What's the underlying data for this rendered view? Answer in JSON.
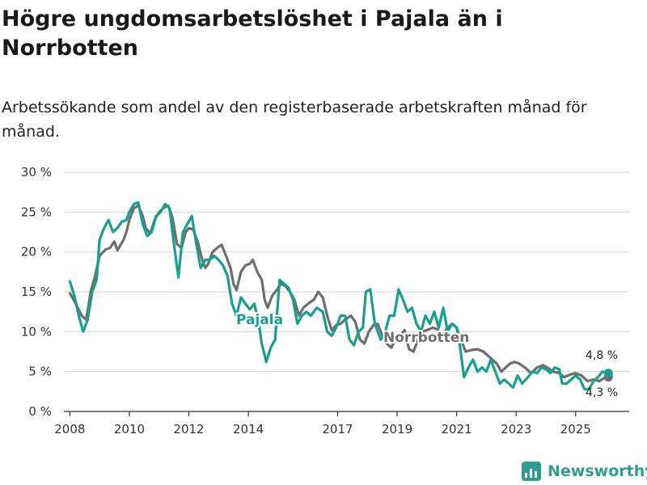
{
  "header": {
    "title": "Högre ungdomsarbetslöshet i Pajala än i Norrbotten",
    "subtitle": "Arbetssökande som andel av den registerbaserade arbetskraften månad för månad."
  },
  "brand": {
    "name": "Newsworthy",
    "color": "#2f9e8f"
  },
  "chart_data": {
    "type": "line",
    "title": "Högre ungdomsarbetslöshet i Pajala än i Norrbotten",
    "subtitle": "Arbetssökande som andel av den registerbaserade arbetskraften månad för månad.",
    "xlabel": "",
    "ylabel": "",
    "xlim": [
      2007.8,
      2026.8
    ],
    "ylim": [
      0,
      30
    ],
    "grid": true,
    "x_ticks": [
      {
        "value": 2008,
        "label": "2008"
      },
      {
        "value": 2010,
        "label": "2010"
      },
      {
        "value": 2012,
        "label": "2012"
      },
      {
        "value": 2014,
        "label": "2014"
      },
      {
        "value": 2017,
        "label": "2017"
      },
      {
        "value": 2019,
        "label": "2019"
      },
      {
        "value": 2021,
        "label": "2021"
      },
      {
        "value": 2023,
        "label": "2023"
      },
      {
        "value": 2025,
        "label": "2025"
      }
    ],
    "y_ticks": [
      {
        "value": 0,
        "label": "0 %"
      },
      {
        "value": 5,
        "label": "5 %"
      },
      {
        "value": 10,
        "label": "10 %"
      },
      {
        "value": 15,
        "label": "15 %"
      },
      {
        "value": 20,
        "label": "20 %"
      },
      {
        "value": 25,
        "label": "25 %"
      },
      {
        "value": 30,
        "label": "30 %"
      }
    ],
    "series": [
      {
        "name": "Norrbotten",
        "color": "#6e6e6e",
        "points": [
          [
            2008.0,
            14.8
          ],
          [
            2008.2,
            13.5
          ],
          [
            2008.4,
            12.0
          ],
          [
            2008.55,
            11.5
          ],
          [
            2008.7,
            15.0
          ],
          [
            2008.85,
            17.0
          ],
          [
            2009.0,
            19.5
          ],
          [
            2009.2,
            20.3
          ],
          [
            2009.35,
            20.5
          ],
          [
            2009.5,
            21.3
          ],
          [
            2009.6,
            20.2
          ],
          [
            2009.8,
            21.5
          ],
          [
            2009.9,
            22.5
          ],
          [
            2010.0,
            24.0
          ],
          [
            2010.15,
            25.5
          ],
          [
            2010.3,
            25.8
          ],
          [
            2010.45,
            24.5
          ],
          [
            2010.55,
            23.0
          ],
          [
            2010.7,
            22.3
          ],
          [
            2010.85,
            24.0
          ],
          [
            2011.0,
            25.0
          ],
          [
            2011.15,
            25.5
          ],
          [
            2011.3,
            25.8
          ],
          [
            2011.45,
            24.3
          ],
          [
            2011.6,
            21.0
          ],
          [
            2011.75,
            20.5
          ],
          [
            2011.9,
            22.5
          ],
          [
            2012.0,
            23.0
          ],
          [
            2012.15,
            22.8
          ],
          [
            2012.3,
            21.2
          ],
          [
            2012.45,
            19.0
          ],
          [
            2012.55,
            18.0
          ],
          [
            2012.65,
            18.5
          ],
          [
            2012.8,
            20.0
          ],
          [
            2012.95,
            20.5
          ],
          [
            2013.1,
            20.9
          ],
          [
            2013.25,
            19.5
          ],
          [
            2013.4,
            18.0
          ],
          [
            2013.5,
            16.0
          ],
          [
            2013.6,
            15.2
          ],
          [
            2013.75,
            17.5
          ],
          [
            2013.9,
            18.3
          ],
          [
            2014.05,
            18.5
          ],
          [
            2014.15,
            19.0
          ],
          [
            2014.3,
            17.5
          ],
          [
            2014.45,
            16.5
          ],
          [
            2014.55,
            14.0
          ],
          [
            2014.65,
            13.0
          ],
          [
            2014.8,
            14.5
          ],
          [
            2014.95,
            15.2
          ],
          [
            2015.1,
            16.0
          ],
          [
            2015.25,
            15.7
          ],
          [
            2015.4,
            15.0
          ],
          [
            2015.55,
            14.0
          ],
          [
            2015.7,
            12.0
          ],
          [
            2015.85,
            13.0
          ],
          [
            2016.0,
            13.5
          ],
          [
            2016.2,
            14.0
          ],
          [
            2016.35,
            15.0
          ],
          [
            2016.5,
            14.3
          ],
          [
            2016.65,
            12.0
          ],
          [
            2016.8,
            10.2
          ],
          [
            2016.95,
            10.8
          ],
          [
            2017.1,
            11.0
          ],
          [
            2017.25,
            11.5
          ],
          [
            2017.45,
            12.0
          ],
          [
            2017.6,
            11.2
          ],
          [
            2017.75,
            9.0
          ],
          [
            2017.9,
            8.5
          ],
          [
            2018.05,
            10.0
          ],
          [
            2018.2,
            10.8
          ],
          [
            2018.35,
            11.0
          ],
          [
            2018.5,
            9.5
          ],
          [
            2018.65,
            8.5
          ],
          [
            2018.8,
            8.0
          ],
          [
            2018.95,
            9.0
          ],
          [
            2019.1,
            9.5
          ],
          [
            2019.25,
            10.2
          ],
          [
            2019.4,
            7.8
          ],
          [
            2019.55,
            7.5
          ],
          [
            2019.7,
            9.0
          ],
          [
            2019.85,
            10.0
          ],
          [
            2020.0,
            10.2
          ],
          [
            2020.2,
            10.5
          ],
          [
            2020.35,
            10.3
          ],
          [
            2020.5,
            9.5
          ],
          [
            2020.7,
            10.5
          ],
          [
            2020.85,
            11.0
          ],
          [
            2021.0,
            10.5
          ],
          [
            2021.15,
            9.0
          ],
          [
            2021.3,
            7.5
          ],
          [
            2021.5,
            7.7
          ],
          [
            2021.7,
            7.8
          ],
          [
            2021.9,
            7.5
          ],
          [
            2022.05,
            7.0
          ],
          [
            2022.2,
            6.5
          ],
          [
            2022.35,
            6.0
          ],
          [
            2022.5,
            5.0
          ],
          [
            2022.65,
            5.5
          ],
          [
            2022.8,
            6.0
          ],
          [
            2022.95,
            6.2
          ],
          [
            2023.1,
            6.0
          ],
          [
            2023.3,
            5.5
          ],
          [
            2023.5,
            4.8
          ],
          [
            2023.7,
            5.5
          ],
          [
            2023.9,
            5.8
          ],
          [
            2024.05,
            5.5
          ],
          [
            2024.25,
            5.0
          ],
          [
            2024.45,
            4.8
          ],
          [
            2024.6,
            4.3
          ],
          [
            2024.8,
            4.6
          ],
          [
            2025.0,
            4.8
          ],
          [
            2025.2,
            4.5
          ],
          [
            2025.4,
            3.8
          ],
          [
            2025.6,
            4.0
          ],
          [
            2025.8,
            3.8
          ],
          [
            2026.0,
            4.3
          ],
          [
            2026.1,
            4.3
          ]
        ]
      },
      {
        "name": "Pajala",
        "color": "#1a9e90",
        "points": [
          [
            2008.0,
            16.3
          ],
          [
            2008.15,
            14.5
          ],
          [
            2008.3,
            12.0
          ],
          [
            2008.45,
            10.0
          ],
          [
            2008.6,
            11.5
          ],
          [
            2008.75,
            15.0
          ],
          [
            2008.9,
            16.5
          ],
          [
            2009.0,
            21.5
          ],
          [
            2009.15,
            23.0
          ],
          [
            2009.3,
            24.0
          ],
          [
            2009.45,
            22.5
          ],
          [
            2009.6,
            23.0
          ],
          [
            2009.75,
            23.8
          ],
          [
            2009.9,
            24.0
          ],
          [
            2010.0,
            25.0
          ],
          [
            2010.15,
            26.0
          ],
          [
            2010.3,
            26.2
          ],
          [
            2010.45,
            23.5
          ],
          [
            2010.6,
            22.0
          ],
          [
            2010.75,
            22.5
          ],
          [
            2010.9,
            24.5
          ],
          [
            2011.05,
            25.0
          ],
          [
            2011.2,
            26.0
          ],
          [
            2011.35,
            25.5
          ],
          [
            2011.5,
            21.0
          ],
          [
            2011.65,
            16.8
          ],
          [
            2011.8,
            22.5
          ],
          [
            2011.95,
            23.5
          ],
          [
            2012.1,
            24.5
          ],
          [
            2012.25,
            21.0
          ],
          [
            2012.4,
            18.0
          ],
          [
            2012.55,
            19.0
          ],
          [
            2012.7,
            19.0
          ],
          [
            2012.85,
            19.5
          ],
          [
            2013.0,
            19.0
          ],
          [
            2013.15,
            18.3
          ],
          [
            2013.3,
            17.0
          ],
          [
            2013.45,
            13.5
          ],
          [
            2013.6,
            12.0
          ],
          [
            2013.75,
            14.3
          ],
          [
            2013.9,
            13.5
          ],
          [
            2014.05,
            12.8
          ],
          [
            2014.2,
            13.5
          ],
          [
            2014.35,
            11.0
          ],
          [
            2014.45,
            8.5
          ],
          [
            2014.6,
            6.2
          ],
          [
            2014.75,
            8.0
          ],
          [
            2014.9,
            9.0
          ],
          [
            2015.05,
            16.5
          ],
          [
            2015.2,
            16.0
          ],
          [
            2015.35,
            15.5
          ],
          [
            2015.5,
            14.0
          ],
          [
            2015.65,
            11.0
          ],
          [
            2015.8,
            12.0
          ],
          [
            2015.95,
            12.5
          ],
          [
            2016.1,
            12.0
          ],
          [
            2016.3,
            13.0
          ],
          [
            2016.5,
            12.5
          ],
          [
            2016.65,
            10.0
          ],
          [
            2016.8,
            9.5
          ],
          [
            2016.95,
            10.5
          ],
          [
            2017.1,
            12.0
          ],
          [
            2017.25,
            12.0
          ],
          [
            2017.4,
            9.0
          ],
          [
            2017.55,
            8.3
          ],
          [
            2017.7,
            10.0
          ],
          [
            2017.85,
            10.5
          ],
          [
            2017.95,
            15.0
          ],
          [
            2018.1,
            15.3
          ],
          [
            2018.25,
            11.0
          ],
          [
            2018.45,
            9.0
          ],
          [
            2018.6,
            10.0
          ],
          [
            2018.75,
            12.0
          ],
          [
            2018.9,
            12.0
          ],
          [
            2019.05,
            15.3
          ],
          [
            2019.2,
            14.0
          ],
          [
            2019.35,
            12.5
          ],
          [
            2019.5,
            13.0
          ],
          [
            2019.65,
            11.0
          ],
          [
            2019.8,
            10.0
          ],
          [
            2019.95,
            12.0
          ],
          [
            2020.1,
            11.0
          ],
          [
            2020.25,
            12.5
          ],
          [
            2020.4,
            10.5
          ],
          [
            2020.55,
            13.0
          ],
          [
            2020.7,
            10.0
          ],
          [
            2020.85,
            11.0
          ],
          [
            2021.0,
            10.5
          ],
          [
            2021.1,
            8.5
          ],
          [
            2021.25,
            4.3
          ],
          [
            2021.4,
            5.5
          ],
          [
            2021.55,
            6.5
          ],
          [
            2021.7,
            5.0
          ],
          [
            2021.85,
            5.5
          ],
          [
            2022.0,
            5.0
          ],
          [
            2022.15,
            6.5
          ],
          [
            2022.3,
            5.0
          ],
          [
            2022.45,
            3.5
          ],
          [
            2022.6,
            4.0
          ],
          [
            2022.75,
            3.5
          ],
          [
            2022.9,
            3.0
          ],
          [
            2023.05,
            4.5
          ],
          [
            2023.2,
            3.5
          ],
          [
            2023.4,
            4.3
          ],
          [
            2023.55,
            5.0
          ],
          [
            2023.7,
            4.8
          ],
          [
            2023.85,
            5.5
          ],
          [
            2024.0,
            5.3
          ],
          [
            2024.15,
            4.8
          ],
          [
            2024.3,
            5.5
          ],
          [
            2024.45,
            5.3
          ],
          [
            2024.55,
            3.5
          ],
          [
            2024.7,
            3.5
          ],
          [
            2024.85,
            4.0
          ],
          [
            2025.0,
            4.5
          ],
          [
            2025.15,
            4.0
          ],
          [
            2025.3,
            2.8
          ],
          [
            2025.45,
            2.8
          ],
          [
            2025.6,
            3.8
          ],
          [
            2025.75,
            4.3
          ],
          [
            2025.9,
            5.0
          ],
          [
            2026.0,
            4.8
          ],
          [
            2026.1,
            4.8
          ]
        ]
      }
    ],
    "annotations": [
      {
        "series": "Pajala",
        "text": "Pajala"
      },
      {
        "series": "Norrbotten",
        "text": "Norrbotten"
      },
      {
        "series": "Pajala",
        "text": "4,8 %",
        "value": 4.8
      },
      {
        "series": "Norrbotten",
        "text": "4,3 %",
        "value": 4.3
      }
    ]
  }
}
